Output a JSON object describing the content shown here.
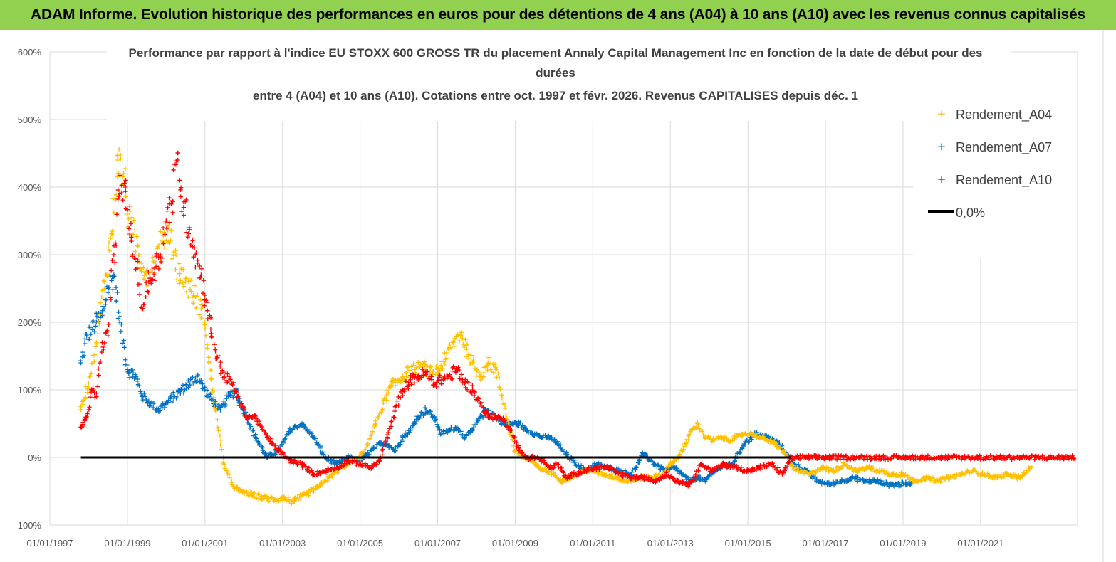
{
  "banner": {
    "title": "ADAM Informe. Evolution historique des performances en euros pour des détentions de 4 ans (A04) à 10 ans (A10) avec les revenus connus capitalisés",
    "color": "#92d050"
  },
  "chart_data": {
    "type": "scatter",
    "title": [
      "Performance par rapport à l'indice EU STOXX 600 GROSS TR  du placement Annaly Capital Management Inc en fonction de la date de début pour des",
      "durées",
      "entre 4 (A04) et 10 ans (A10). Cotations entre oct. 1997 et févr. 2026. Revenus CAPITALISES depuis déc. 1"
    ],
    "xlabel": "",
    "ylabel": "",
    "xlim": [
      1997.0,
      2023.5
    ],
    "ylim": [
      -100,
      600
    ],
    "y_ticks": [
      600,
      500,
      400,
      300,
      200,
      100,
      0,
      -100
    ],
    "y_tick_labels": [
      "600%",
      "500%",
      "400%",
      "300%",
      "200%",
      "100%",
      "0%",
      "- 100%"
    ],
    "x_ticks": [
      1997,
      1999,
      2001,
      2003,
      2005,
      2007,
      2009,
      2011,
      2013,
      2015,
      2017,
      2019,
      2021
    ],
    "x_tick_labels": [
      "01/01/1997",
      "01/01/1999",
      "01/01/2001",
      "01/01/2003",
      "01/01/2005",
      "01/01/2007",
      "01/01/2009",
      "01/01/2011",
      "01/01/2013",
      "01/01/2015",
      "01/01/2017",
      "01/01/2019",
      "01/01/2021"
    ],
    "grid": true,
    "legend_position": "top-right",
    "series": [
      {
        "name": "Rendement_A04",
        "color": "#ffc000",
        "marker": "+",
        "x": [
          1997.8,
          1998.0,
          1998.2,
          1998.4,
          1998.6,
          1998.75,
          1998.9,
          1999.0,
          1999.15,
          1999.3,
          1999.5,
          1999.7,
          1999.9,
          2000.05,
          2000.2,
          2000.35,
          2000.5,
          2000.7,
          2000.9,
          2001.0,
          2001.1,
          2001.2,
          2001.35,
          2001.5,
          2001.7,
          2001.9,
          2002.2,
          2002.5,
          2002.8,
          2003.0,
          2003.3,
          2003.6,
          2003.9,
          2004.2,
          2004.5,
          2004.8,
          2005.0,
          2005.2,
          2005.4,
          2005.6,
          2005.8,
          2006.0,
          2006.2,
          2006.4,
          2006.6,
          2006.8,
          2007.0,
          2007.2,
          2007.4,
          2007.6,
          2007.75,
          2007.9,
          2008.1,
          2008.3,
          2008.5,
          2008.7,
          2008.85,
          2009.0,
          2009.2,
          2009.4,
          2009.6,
          2009.8,
          2010.0,
          2010.2,
          2010.4,
          2010.6,
          2010.8,
          2011.0,
          2011.3,
          2011.6,
          2011.9,
          2012.2,
          2012.5,
          2012.8,
          2013.0,
          2013.2,
          2013.4,
          2013.55,
          2013.7,
          2013.9,
          2014.1,
          2014.3,
          2014.5,
          2014.7,
          2014.9,
          2015.1,
          2015.3,
          2015.5,
          2015.7,
          2015.9,
          2016.1,
          2016.3,
          2016.6,
          2016.9,
          2017.2,
          2017.5,
          2017.8,
          2018.1,
          2018.4,
          2018.7,
          2019.0,
          2019.3,
          2019.6,
          2019.9,
          2020.2,
          2020.5,
          2020.8,
          2021.1,
          2021.4,
          2021.7,
          2022.0,
          2022.3
        ],
        "y": [
          75,
          110,
          170,
          260,
          330,
          440,
          420,
          360,
          330,
          300,
          270,
          290,
          320,
          340,
          300,
          270,
          260,
          240,
          220,
          200,
          140,
          100,
          40,
          -10,
          -40,
          -50,
          -55,
          -60,
          -62,
          -60,
          -65,
          -55,
          -45,
          -30,
          -15,
          -5,
          0,
          20,
          50,
          80,
          105,
          115,
          125,
          130,
          135,
          125,
          130,
          145,
          170,
          185,
          160,
          140,
          120,
          140,
          130,
          80,
          40,
          10,
          0,
          -5,
          -15,
          -20,
          -25,
          -35,
          -30,
          -25,
          -20,
          -20,
          -25,
          -30,
          -35,
          -30,
          -30,
          -25,
          -10,
          0,
          20,
          40,
          50,
          30,
          25,
          30,
          25,
          30,
          35,
          35,
          30,
          25,
          20,
          10,
          -10,
          -20,
          -25,
          -15,
          -20,
          -10,
          -20,
          -15,
          -20,
          -25,
          -25,
          -35,
          -30,
          -35,
          -30,
          -25,
          -20,
          -25,
          -30,
          -25,
          -30,
          -15
        ]
      },
      {
        "name": "Rendement_A07",
        "color": "#0070c0",
        "marker": "+",
        "x": [
          1997.8,
          1997.95,
          1998.1,
          1998.2,
          1998.35,
          1998.5,
          1998.65,
          1998.8,
          1999.0,
          1999.2,
          1999.4,
          1999.6,
          1999.8,
          2000.0,
          2000.2,
          2000.4,
          2000.6,
          2000.8,
          2001.0,
          2001.1,
          2001.25,
          2001.4,
          2001.6,
          2001.8,
          2002.0,
          2002.3,
          2002.6,
          2002.9,
          2003.2,
          2003.5,
          2003.8,
          2004.1,
          2004.4,
          2004.7,
          2005.0,
          2005.3,
          2005.5,
          2005.7,
          2005.9,
          2006.1,
          2006.3,
          2006.5,
          2006.7,
          2006.9,
          2007.1,
          2007.3,
          2007.5,
          2007.7,
          2007.9,
          2008.1,
          2008.3,
          2008.5,
          2008.7,
          2008.9,
          2009.1,
          2009.3,
          2009.5,
          2009.7,
          2009.9,
          2010.1,
          2010.3,
          2010.5,
          2010.8,
          2011.1,
          2011.4,
          2011.7,
          2012.0,
          2012.3,
          2012.6,
          2012.9,
          2013.1,
          2013.3,
          2013.5,
          2013.7,
          2013.9,
          2014.1,
          2014.3,
          2014.6,
          2014.9,
          2015.2,
          2015.5,
          2015.8,
          2016.0,
          2016.2,
          2016.5,
          2016.8,
          2017.1,
          2017.4,
          2017.7,
          2018.0,
          2018.3,
          2018.6,
          2018.9,
          2019.2
        ],
        "y": [
          140,
          180,
          190,
          200,
          210,
          250,
          270,
          200,
          130,
          120,
          90,
          80,
          70,
          80,
          90,
          100,
          110,
          120,
          100,
          90,
          80,
          70,
          90,
          100,
          70,
          30,
          0,
          10,
          40,
          50,
          30,
          0,
          -10,
          0,
          -5,
          10,
          20,
          20,
          10,
          30,
          40,
          60,
          70,
          60,
          35,
          40,
          45,
          30,
          40,
          60,
          70,
          60,
          50,
          50,
          50,
          40,
          35,
          30,
          30,
          20,
          5,
          -5,
          -20,
          -10,
          -15,
          -20,
          -25,
          5,
          -10,
          -20,
          -15,
          -25,
          -35,
          -30,
          -35,
          -20,
          -15,
          -10,
          20,
          35,
          30,
          20,
          5,
          -10,
          -20,
          -35,
          -40,
          -35,
          -30,
          -35,
          -35,
          -40,
          -40,
          -38
        ]
      },
      {
        "name": "Rendement_A10",
        "color": "#ff0000",
        "marker": "+",
        "x": [
          1997.8,
          1997.95,
          1998.1,
          1998.2,
          1998.35,
          1998.5,
          1998.65,
          1998.8,
          1998.95,
          1999.1,
          1999.25,
          1999.4,
          1999.55,
          1999.7,
          1999.85,
          2000.0,
          2000.15,
          2000.3,
          2000.45,
          2000.6,
          2000.75,
          2000.9,
          2001.0,
          2001.15,
          2001.3,
          2001.5,
          2001.7,
          2001.9,
          2002.1,
          2002.3,
          2002.6,
          2002.9,
          2003.2,
          2003.5,
          2003.8,
          2004.1,
          2004.4,
          2004.7,
          2005.0,
          2005.3,
          2005.5,
          2005.7,
          2005.9,
          2006.1,
          2006.3,
          2006.5,
          2006.7,
          2006.9,
          2007.1,
          2007.3,
          2007.5,
          2007.7,
          2007.9,
          2008.1,
          2008.3,
          2008.5,
          2008.7,
          2008.9,
          2009.1,
          2009.3,
          2009.5,
          2009.7,
          2009.9,
          2010.1,
          2010.3,
          2010.5,
          2010.8,
          2011.1,
          2011.4,
          2011.7,
          2012.0,
          2012.3,
          2012.6,
          2012.9,
          2013.2,
          2013.5,
          2013.8,
          2014.1,
          2014.4,
          2014.7,
          2015.0,
          2015.3,
          2015.6,
          2015.9,
          2016.1,
          2016.5,
          2017.0,
          2017.5,
          2018.0,
          2018.5,
          2019.0,
          2019.5,
          2020.0,
          2020.5,
          2021.0,
          2021.5,
          2022.0,
          2022.5,
          2023.0,
          2023.4
        ],
        "y": [
          45,
          60,
          100,
          90,
          170,
          180,
          300,
          390,
          400,
          320,
          280,
          220,
          260,
          280,
          300,
          350,
          380,
          440,
          370,
          340,
          300,
          270,
          240,
          190,
          150,
          120,
          110,
          80,
          60,
          60,
          30,
          10,
          -5,
          -10,
          -25,
          -20,
          -15,
          -5,
          -10,
          -15,
          -5,
          30,
          70,
          100,
          115,
          120,
          125,
          110,
          115,
          120,
          130,
          110,
          100,
          80,
          60,
          60,
          55,
          40,
          10,
          0,
          0,
          -5,
          -15,
          -10,
          -30,
          -25,
          -20,
          -15,
          -15,
          -25,
          -30,
          -30,
          -35,
          -25,
          -35,
          -40,
          -10,
          -20,
          -10,
          -15,
          -20,
          -15,
          -10,
          -25,
          0,
          0,
          0,
          0,
          0,
          0,
          0,
          0,
          0,
          0,
          0,
          0,
          0,
          0,
          0,
          0
        ]
      },
      {
        "name": "0,0%",
        "color": "#000000",
        "marker": "line",
        "x": [
          1997.8,
          2016.1
        ],
        "y": [
          0,
          0
        ]
      }
    ]
  }
}
